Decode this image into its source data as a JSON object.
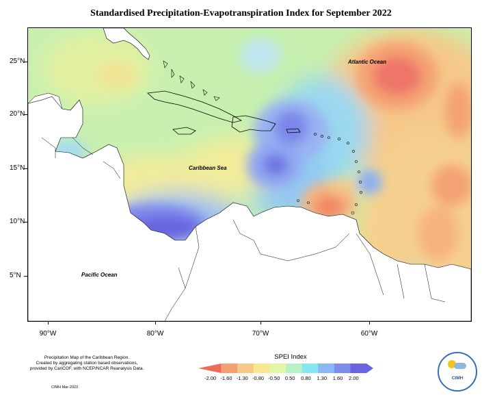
{
  "title": "Standardised Precipitation-Evapotranspiration Index for September 2022",
  "map": {
    "lat_labels": [
      "25°N",
      "20°N",
      "15°N",
      "10°N",
      "5°N"
    ],
    "lon_labels": [
      "90°W",
      "80°W",
      "70°W",
      "60°W"
    ],
    "place_labels": {
      "atlantic": "Atlantic Ocean",
      "caribbean": "Caribbean Sea",
      "pacific": "Pacific Ocean"
    }
  },
  "legend": {
    "title": "SPEI Index",
    "ticks": [
      "-2.00",
      "-1.60",
      "-1.30",
      "-0.80",
      "-0.50",
      "0.50",
      "0.80",
      "1.30",
      "1.60",
      "2.00"
    ],
    "colors": [
      "#f06a5a",
      "#f4a070",
      "#f7c886",
      "#f8e890",
      "#e4f4a8",
      "#b8f0c8",
      "#88e6f0",
      "#8ab8f4",
      "#7e8cee",
      "#6a64e2"
    ]
  },
  "footnote": {
    "line1": "Precipitation Map of the Caribbean Region.",
    "line2": "Created by aggregating station based observations,",
    "line3": "provided by CariCOF, with NCEP/NCAR Reanalysis Data.",
    "credit": "CIMH Mar-2023"
  },
  "logo": {
    "text": "CIMH"
  }
}
